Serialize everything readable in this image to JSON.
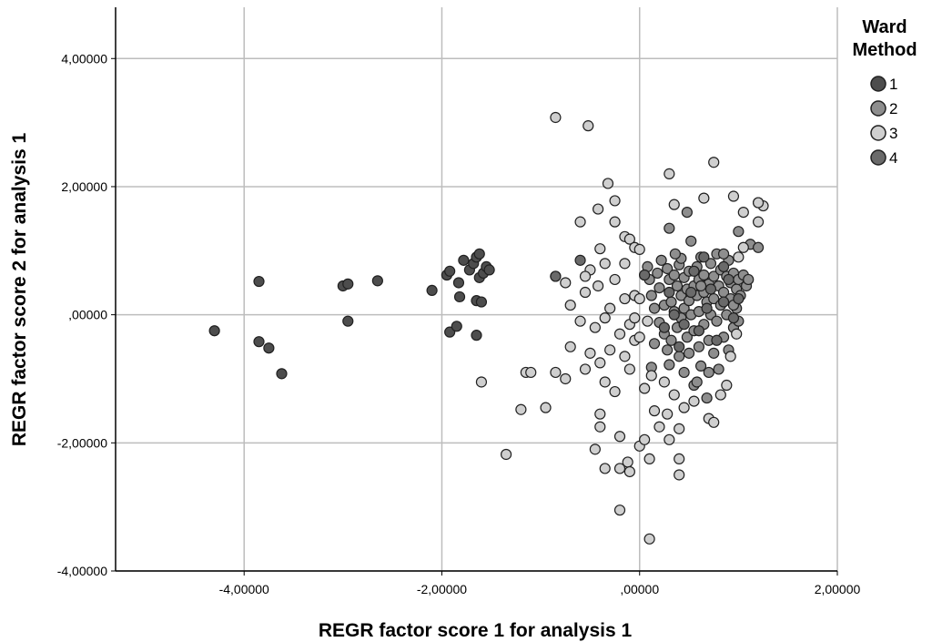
{
  "colors": {
    "background": "#ffffff",
    "grid": "#bdbdbd",
    "axis": "#000000",
    "marker_stroke": "#202020"
  },
  "chart_data": {
    "type": "scatter",
    "title": "",
    "xlabel": "REGR factor score   1 for analysis 1",
    "ylabel": "REGR factor score   2 for analysis 1",
    "xlim": [
      -5.3,
      2.0
    ],
    "ylim": [
      -4.0,
      4.8
    ],
    "xticks": [
      -4,
      -2,
      0,
      2
    ],
    "yticks": [
      -4,
      -2,
      0,
      2,
      4
    ],
    "xtick_labels": [
      "-4,00000",
      "-2,00000",
      ",00000",
      "2,00000"
    ],
    "ytick_labels": [
      "-4,00000",
      "-2,00000",
      ",00000",
      "2,00000",
      "4,00000"
    ],
    "grid": true,
    "legend": {
      "title": "Ward Method",
      "title_lines": [
        "Ward",
        "Method"
      ],
      "position": "top-right",
      "entries": [
        "1",
        "2",
        "3",
        "4"
      ]
    },
    "series": [
      {
        "name": "1",
        "color": "#4d4d4d",
        "points": [
          [
            -4.3,
            -0.25
          ],
          [
            -3.85,
            0.52
          ],
          [
            -3.85,
            -0.42
          ],
          [
            -3.75,
            -0.52
          ],
          [
            -3.62,
            -0.92
          ],
          [
            -3.0,
            0.45
          ],
          [
            -2.95,
            0.48
          ],
          [
            -2.95,
            -0.1
          ],
          [
            -2.65,
            0.53
          ],
          [
            -2.1,
            0.38
          ],
          [
            -1.95,
            0.62
          ],
          [
            -1.92,
            0.68
          ],
          [
            -1.92,
            -0.27
          ],
          [
            -1.85,
            -0.18
          ],
          [
            -1.83,
            0.5
          ],
          [
            -1.82,
            0.28
          ],
          [
            -1.78,
            0.85
          ],
          [
            -1.72,
            0.7
          ],
          [
            -1.68,
            0.8
          ],
          [
            -1.65,
            0.9
          ],
          [
            -1.65,
            0.22
          ],
          [
            -1.65,
            -0.32
          ],
          [
            -1.62,
            0.95
          ],
          [
            -1.62,
            0.58
          ],
          [
            -1.6,
            0.2
          ],
          [
            -1.58,
            0.65
          ],
          [
            -1.55,
            0.75
          ],
          [
            -1.52,
            0.7
          ]
        ]
      },
      {
        "name": "2",
        "color": "#8e8e8e",
        "points": [
          [
            0.05,
            0.62
          ],
          [
            0.08,
            0.75
          ],
          [
            0.1,
            0.55
          ],
          [
            0.12,
            0.3
          ],
          [
            0.12,
            -0.82
          ],
          [
            0.15,
            0.1
          ],
          [
            0.15,
            -0.45
          ],
          [
            0.18,
            0.65
          ],
          [
            0.2,
            -0.12
          ],
          [
            0.2,
            0.42
          ],
          [
            0.22,
            0.85
          ],
          [
            0.25,
            -0.3
          ],
          [
            0.25,
            0.15
          ],
          [
            0.28,
            0.72
          ],
          [
            0.28,
            -0.55
          ],
          [
            0.3,
            0.55
          ],
          [
            0.3,
            -0.78
          ],
          [
            0.32,
            0.2
          ],
          [
            0.32,
            -0.4
          ],
          [
            0.35,
            0.62
          ],
          [
            0.35,
            0.05
          ],
          [
            0.38,
            -0.2
          ],
          [
            0.38,
            0.45
          ],
          [
            0.4,
            0.78
          ],
          [
            0.4,
            -0.65
          ],
          [
            0.42,
            0.3
          ],
          [
            0.42,
            -0.05
          ],
          [
            0.45,
            0.58
          ],
          [
            0.45,
            -0.9
          ],
          [
            0.45,
            0.1
          ],
          [
            0.48,
            0.4
          ],
          [
            0.48,
            -0.35
          ],
          [
            0.5,
            0.68
          ],
          [
            0.5,
            0.22
          ],
          [
            0.5,
            -0.6
          ],
          [
            0.52,
            1.15
          ],
          [
            0.52,
            0.0
          ],
          [
            0.55,
            0.45
          ],
          [
            0.55,
            -1.1
          ],
          [
            0.55,
            -0.25
          ],
          [
            0.58,
            0.75
          ],
          [
            0.58,
            0.3
          ],
          [
            0.6,
            -0.5
          ],
          [
            0.6,
            0.55
          ],
          [
            0.6,
            0.05
          ],
          [
            0.62,
            0.9
          ],
          [
            0.62,
            -0.8
          ],
          [
            0.65,
            0.35
          ],
          [
            0.65,
            -0.15
          ],
          [
            0.65,
            0.62
          ],
          [
            0.68,
            -1.3
          ],
          [
            0.68,
            0.2
          ],
          [
            0.7,
            0.48
          ],
          [
            0.7,
            -0.4
          ],
          [
            0.72,
            0.8
          ],
          [
            0.72,
            0.0
          ],
          [
            0.75,
            0.6
          ],
          [
            0.75,
            -0.6
          ],
          [
            0.75,
            0.25
          ],
          [
            0.78,
            0.95
          ],
          [
            0.78,
            -0.1
          ],
          [
            0.8,
            0.45
          ],
          [
            0.8,
            -0.85
          ],
          [
            0.82,
            0.15
          ],
          [
            0.82,
            0.7
          ],
          [
            0.85,
            -0.35
          ],
          [
            0.85,
            0.35
          ],
          [
            0.88,
            0.6
          ],
          [
            0.88,
            0.0
          ],
          [
            0.9,
            -0.55
          ],
          [
            0.9,
            0.85
          ],
          [
            0.92,
            0.25
          ],
          [
            0.92,
            0.5
          ],
          [
            0.95,
            0.65
          ],
          [
            0.95,
            -0.2
          ],
          [
            0.98,
            0.4
          ],
          [
            0.98,
            0.1
          ],
          [
            1.0,
            0.55
          ],
          [
            1.0,
            -0.1
          ],
          [
            1.02,
            0.3
          ],
          [
            1.05,
            0.62
          ],
          [
            1.08,
            0.45
          ],
          [
            1.1,
            0.55
          ],
          [
            1.12,
            1.1
          ],
          [
            1.2,
            1.75
          ],
          [
            1.2,
            1.05
          ],
          [
            0.48,
            1.6
          ],
          [
            0.62,
            0.45
          ],
          [
            0.7,
            -0.9
          ],
          [
            0.58,
            -1.05
          ],
          [
            0.42,
            0.88
          ],
          [
            0.36,
            0.95
          ],
          [
            0.3,
            1.35
          ],
          [
            0.85,
            0.95
          ],
          [
            0.95,
            0.15
          ],
          [
            1.0,
            1.3
          ]
        ]
      },
      {
        "name": "3",
        "color": "#cfcfcf",
        "points": [
          [
            -0.85,
            3.08
          ],
          [
            -0.52,
            2.95
          ],
          [
            -0.32,
            2.05
          ],
          [
            -0.25,
            1.78
          ],
          [
            -0.42,
            1.65
          ],
          [
            -0.6,
            1.45
          ],
          [
            -0.25,
            1.45
          ],
          [
            -0.15,
            1.22
          ],
          [
            -0.1,
            1.18
          ],
          [
            -0.4,
            1.03
          ],
          [
            -0.05,
            1.05
          ],
          [
            0.0,
            1.02
          ],
          [
            -0.35,
            0.8
          ],
          [
            -0.5,
            0.7
          ],
          [
            -0.55,
            0.6
          ],
          [
            -0.85,
            0.6
          ],
          [
            -0.75,
            0.5
          ],
          [
            -0.25,
            0.55
          ],
          [
            -0.42,
            0.45
          ],
          [
            -0.55,
            0.35
          ],
          [
            -0.7,
            0.15
          ],
          [
            -0.3,
            0.1
          ],
          [
            -0.15,
            0.25
          ],
          [
            -0.05,
            0.3
          ],
          [
            0.0,
            0.25
          ],
          [
            -0.6,
            -0.1
          ],
          [
            -0.45,
            -0.2
          ],
          [
            -0.35,
            -0.05
          ],
          [
            -0.2,
            -0.3
          ],
          [
            -0.1,
            -0.15
          ],
          [
            -0.7,
            -0.5
          ],
          [
            -0.5,
            -0.6
          ],
          [
            -0.4,
            -0.75
          ],
          [
            -0.3,
            -0.55
          ],
          [
            -0.15,
            -0.65
          ],
          [
            -0.05,
            -0.4
          ],
          [
            0.0,
            -0.35
          ],
          [
            -0.85,
            -0.9
          ],
          [
            -0.75,
            -1.0
          ],
          [
            -0.55,
            -0.85
          ],
          [
            -0.35,
            -1.05
          ],
          [
            -0.25,
            -1.2
          ],
          [
            -0.1,
            -0.85
          ],
          [
            0.05,
            -1.15
          ],
          [
            -1.15,
            -0.9
          ],
          [
            -1.1,
            -0.9
          ],
          [
            -0.95,
            -1.45
          ],
          [
            -1.2,
            -1.48
          ],
          [
            -0.4,
            -1.55
          ],
          [
            -0.4,
            -1.75
          ],
          [
            -0.2,
            -1.9
          ],
          [
            0.0,
            -2.05
          ],
          [
            0.05,
            -1.95
          ],
          [
            -0.45,
            -2.1
          ],
          [
            -0.35,
            -2.4
          ],
          [
            -0.2,
            -2.4
          ],
          [
            -0.12,
            -2.3
          ],
          [
            -0.1,
            -2.45
          ],
          [
            0.1,
            -2.25
          ],
          [
            0.4,
            -2.25
          ],
          [
            0.4,
            -2.5
          ],
          [
            -0.2,
            -3.05
          ],
          [
            0.1,
            -3.5
          ],
          [
            -1.35,
            -2.18
          ],
          [
            -1.6,
            -1.05
          ],
          [
            0.3,
            2.2
          ],
          [
            0.75,
            2.38
          ],
          [
            0.65,
            1.82
          ],
          [
            0.95,
            1.85
          ],
          [
            1.05,
            1.6
          ],
          [
            1.25,
            1.7
          ],
          [
            1.2,
            1.45
          ],
          [
            0.28,
            -1.55
          ],
          [
            0.3,
            -1.95
          ],
          [
            0.2,
            -1.75
          ],
          [
            0.15,
            -1.5
          ],
          [
            0.35,
            -1.25
          ],
          [
            0.25,
            -1.05
          ],
          [
            0.45,
            -1.45
          ],
          [
            0.55,
            -1.35
          ],
          [
            0.4,
            -1.78
          ],
          [
            0.7,
            -1.62
          ],
          [
            0.75,
            -1.68
          ],
          [
            0.82,
            -1.25
          ],
          [
            0.88,
            -1.1
          ],
          [
            0.92,
            -0.65
          ],
          [
            0.98,
            -0.3
          ],
          [
            1.0,
            0.9
          ],
          [
            1.05,
            1.05
          ],
          [
            1.2,
            1.75
          ],
          [
            0.35,
            1.72
          ],
          [
            -0.15,
            0.8
          ],
          [
            -0.05,
            -0.05
          ],
          [
            0.08,
            -0.1
          ],
          [
            0.12,
            -0.95
          ]
        ]
      },
      {
        "name": "4",
        "color": "#6a6a6a",
        "points": [
          [
            -0.6,
            0.85
          ],
          [
            -0.85,
            0.6
          ],
          [
            0.05,
            0.62
          ],
          [
            0.25,
            -0.2
          ],
          [
            0.4,
            -0.5
          ],
          [
            0.45,
            -0.15
          ],
          [
            0.52,
            0.35
          ],
          [
            0.6,
            -0.25
          ],
          [
            0.68,
            0.1
          ],
          [
            0.72,
            0.4
          ],
          [
            0.78,
            -0.4
          ],
          [
            0.85,
            0.2
          ],
          [
            0.9,
            0.55
          ],
          [
            0.95,
            -0.05
          ],
          [
            1.0,
            0.25
          ],
          [
            0.35,
            0.0
          ],
          [
            0.3,
            0.35
          ],
          [
            0.55,
            0.68
          ],
          [
            0.65,
            0.9
          ],
          [
            0.85,
            0.75
          ]
        ]
      }
    ]
  }
}
